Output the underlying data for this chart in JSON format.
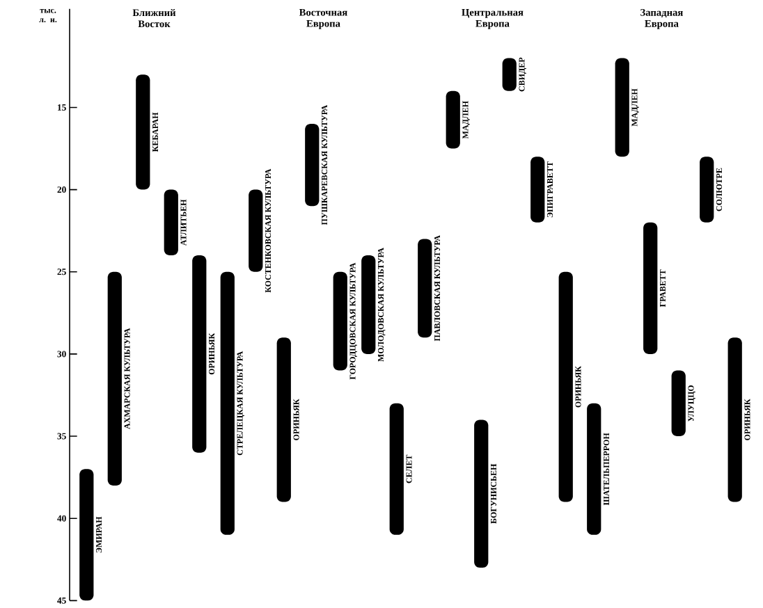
{
  "chart_data": {
    "type": "bar",
    "ylabel": "тыс. л. н.",
    "annotations": [
      "Ближний Восток",
      "Восточная Европа",
      "Центральная Европа",
      "Западная Европа"
    ],
    "categories": [
      "ЭМИРАН",
      "АХМАРСКАЯ КУЛЬТУРА",
      "КЕБАРАН",
      "АТЛИТЬЕН",
      "ОРИНЬЯК",
      "СТРЕЛЕЦКАЯ КУЛЬТУРА",
      "КОСТЕНКОВСКАЯ КУЛЬТУРА",
      "ОРИНЬЯК",
      "ПУШКАРЕВСКАЯ КУЛЬТУРА",
      "ГОРОДЦОВСКАЯ КУЛЬТУРА",
      "МОЛОДОВСКАЯ КУЛЬТУРА",
      "СЕЛЕТ",
      "ПАВЛОВСКАЯ КУЛЬТУРА",
      "МАДЛЕН",
      "БОГУНИСЬЕН",
      "СВИДЕР",
      "ЭПИГРАВЕТТ",
      "ОРИНЬЯК",
      "ШАТЕЛЬПЕРРОН",
      "МАДЛЕН",
      "ГРАВЕТТ",
      "УЛУЦЦО",
      "СОЛЮТРЕ",
      "ОРИНЬЯК"
    ],
    "ylim": [
      45,
      9
    ],
    "yticks": [
      15,
      20,
      25,
      30,
      35,
      40,
      45
    ],
    "color": "#000000",
    "base": [
      37,
      25,
      13,
      20,
      24,
      25,
      20,
      29,
      16,
      25,
      24,
      33,
      23,
      14,
      34,
      12,
      18,
      25,
      33,
      12,
      22,
      31,
      18,
      29
    ],
    "values": [
      8,
      13,
      7,
      4,
      12,
      16,
      5,
      10,
      5,
      6,
      6,
      8,
      6,
      3.5,
      9,
      2,
      4,
      14,
      8,
      6,
      8,
      4,
      4,
      10
    ]
  }
}
